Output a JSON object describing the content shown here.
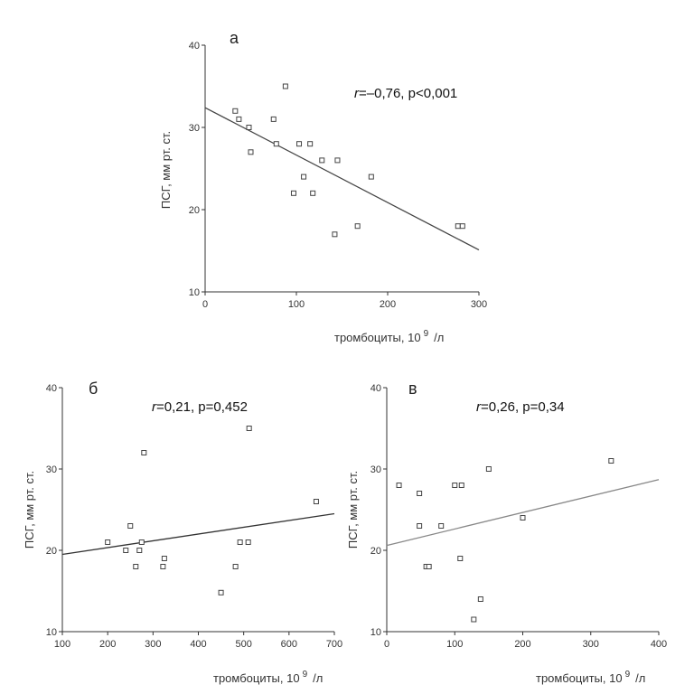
{
  "chart_data": [
    {
      "type": "scatter",
      "panel_label": "а",
      "stat_r": "r",
      "stat_text": "=–0,76, p<0,001",
      "xlabel": "тромбоциты, 10",
      "xlabel_sup": "9",
      "xlabel_unit": "/л",
      "ylabel": "ПСГ, мм рт. ст.",
      "xlim": [
        0,
        300
      ],
      "ylim": [
        10,
        40
      ],
      "xticks": [
        0,
        100,
        200,
        300
      ],
      "yticks": [
        10,
        20,
        30,
        40
      ],
      "x": [
        33,
        37,
        48,
        50,
        75,
        78,
        88,
        97,
        103,
        108,
        115,
        118,
        128,
        142,
        145,
        167,
        182,
        277,
        282
      ],
      "y": [
        32,
        31,
        30,
        27,
        31,
        28,
        35,
        22,
        28,
        24,
        28,
        22,
        26,
        17,
        26,
        18,
        24,
        18,
        18
      ],
      "trend": {
        "x": [
          0,
          300
        ],
        "y": [
          32.4,
          15.1
        ]
      }
    },
    {
      "type": "scatter",
      "panel_label": "б",
      "stat_r": "r",
      "stat_text": "=0,21, p=0,452",
      "xlabel": "тромбоциты, 10",
      "xlabel_sup": "9",
      "xlabel_unit": "/л",
      "ylabel": "ПСГ, мм рт. ст.",
      "xlim": [
        100,
        700
      ],
      "ylim": [
        10,
        40
      ],
      "xticks": [
        100,
        200,
        300,
        400,
        500,
        600,
        700
      ],
      "yticks": [
        10,
        20,
        30,
        40
      ],
      "x": [
        200,
        240,
        250,
        262,
        270,
        275,
        280,
        322,
        325,
        450,
        482,
        492,
        510,
        512,
        660
      ],
      "y": [
        21,
        20,
        23,
        18,
        20,
        21,
        32,
        18,
        19,
        14.8,
        18,
        21,
        21,
        35,
        26
      ],
      "trend": {
        "x": [
          100,
          700
        ],
        "y": [
          19.5,
          24.5
        ]
      }
    },
    {
      "type": "scatter",
      "panel_label": "в",
      "stat_r": "r",
      "stat_text": "=0,26, p=0,34",
      "xlabel": "тромбоциты, 10",
      "xlabel_sup": "9",
      "xlabel_unit": "/л",
      "ylabel": "ПСГ, мм рт. ст.",
      "xlim": [
        0,
        400
      ],
      "ylim": [
        10,
        40
      ],
      "xticks": [
        0,
        100,
        200,
        300,
        400
      ],
      "yticks": [
        10,
        20,
        30,
        40
      ],
      "x": [
        18,
        48,
        48,
        58,
        62,
        80,
        100,
        108,
        110,
        128,
        138,
        150,
        200,
        330
      ],
      "y": [
        28,
        27,
        23,
        18,
        18,
        23,
        28,
        19,
        28,
        11.5,
        14,
        30,
        24,
        31
      ],
      "trend": {
        "x": [
          0,
          400
        ],
        "y": [
          20.6,
          28.7
        ]
      }
    }
  ]
}
